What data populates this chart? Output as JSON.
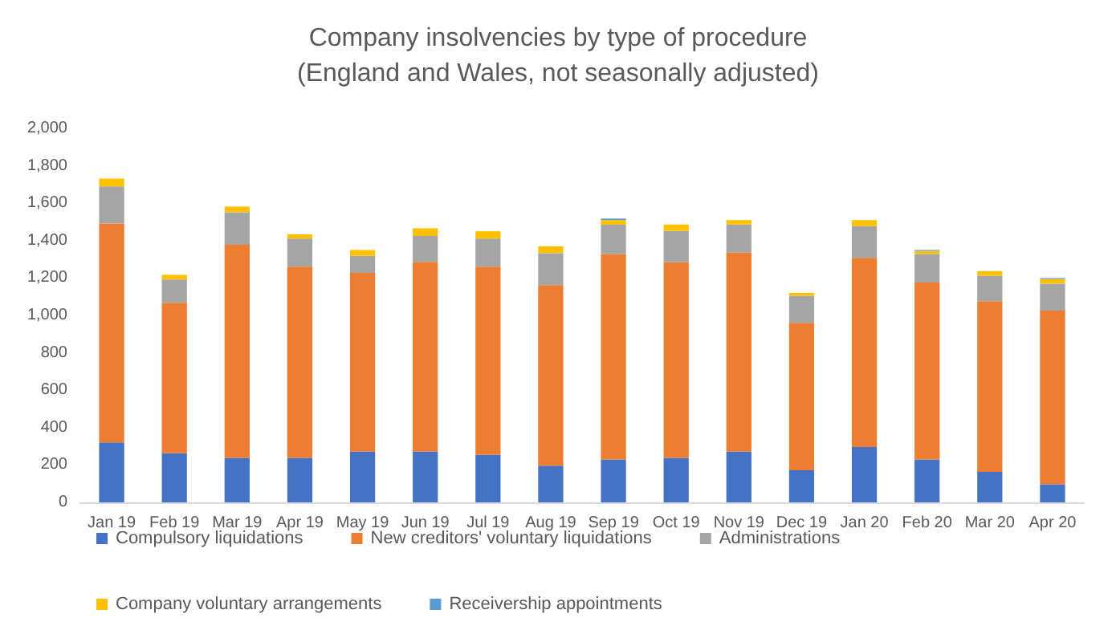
{
  "chart_data": {
    "type": "bar",
    "stacked": true,
    "title": "Company insolvencies by type of procedure\n(England and Wales, not seasonally adjusted)",
    "categories": [
      "Jan 19",
      "Feb 19",
      "Mar 19",
      "Apr 19",
      "May 19",
      "Jun 19",
      "Jul 19",
      "Aug 19",
      "Sep 19",
      "Oct 19",
      "Nov 19",
      "Dec 19",
      "Jan 20",
      "Feb 20",
      "Mar 20",
      "Apr 20"
    ],
    "series": [
      {
        "name": "Compulsory liquidations",
        "color": "#4472c4",
        "values": [
          321,
          263,
          238,
          238,
          271,
          271,
          254,
          196,
          230,
          238,
          271,
          172,
          296,
          230,
          163,
          97
        ]
      },
      {
        "name": "New creditors' voluntary liquidations",
        "color": "#ed7d31",
        "values": [
          1170,
          805,
          1140,
          1023,
          957,
          1015,
          1007,
          966,
          1098,
          1046,
          1065,
          788,
          1012,
          946,
          913,
          929
        ]
      },
      {
        "name": "Administrations",
        "color": "#a5a5a5",
        "values": [
          199,
          124,
          174,
          150,
          91,
          139,
          150,
          171,
          157,
          168,
          150,
          144,
          169,
          152,
          136,
          144
        ]
      },
      {
        "name": "Company voluntary arrangements",
        "color": "#ffc000",
        "values": [
          42,
          25,
          30,
          22,
          31,
          41,
          39,
          36,
          25,
          34,
          24,
          16,
          33,
          17,
          25,
          25
        ]
      },
      {
        "name": "Receivership appointments",
        "color": "#5b9bd5",
        "values": [
          0,
          0,
          0,
          0,
          0,
          0,
          0,
          0,
          8,
          0,
          0,
          0,
          0,
          5,
          0,
          5
        ]
      }
    ],
    "ylim": [
      0,
      2000
    ],
    "yticks": [
      0,
      200,
      400,
      600,
      800,
      {
        "value": 1000,
        "label": "1,000"
      },
      {
        "value": 1200,
        "label": "1,200"
      },
      {
        "value": 1400,
        "label": "1,400"
      },
      {
        "value": 1600,
        "label": "1,600"
      },
      {
        "value": 1800,
        "label": "1,800"
      },
      {
        "value": 2000,
        "label": "2,000"
      }
    ],
    "grid": false,
    "legend": "bottom"
  }
}
